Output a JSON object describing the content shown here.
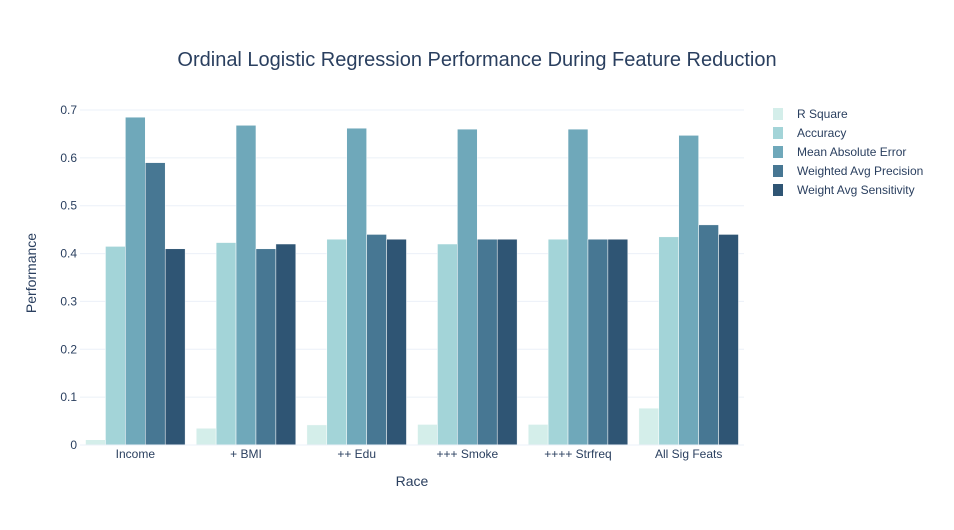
{
  "chart_data": {
    "type": "bar",
    "title": "Ordinal Logistic Regression Performance During Feature Reduction",
    "xlabel": "Race",
    "ylabel": "Performance",
    "ylim": [
      0,
      0.7
    ],
    "yticks": [
      0,
      0.1,
      0.2,
      0.3,
      0.4,
      0.5,
      0.6,
      0.7
    ],
    "ytick_labels": [
      "0",
      "0.1",
      "0.2",
      "0.3",
      "0.4",
      "0.5",
      "0.6",
      "0.7"
    ],
    "grid": true,
    "legend_position": "top-right",
    "categories": [
      "Income",
      "+ BMI",
      "++ Edu",
      "+++ Smoke",
      "++++ Strfreq",
      "All Sig Feats"
    ],
    "series": [
      {
        "name": "R Square",
        "color": "#d4eeea",
        "values": [
          0.011,
          0.035,
          0.042,
          0.043,
          0.043,
          0.077
        ]
      },
      {
        "name": "Accuracy",
        "color": "#a3d4d8",
        "values": [
          0.415,
          0.423,
          0.43,
          0.42,
          0.43,
          0.435
        ]
      },
      {
        "name": "Mean Absolute Error",
        "color": "#6fa8ba",
        "values": [
          0.685,
          0.668,
          0.662,
          0.66,
          0.66,
          0.647
        ]
      },
      {
        "name": "Weighted Avg Precision",
        "color": "#477793",
        "values": [
          0.59,
          0.41,
          0.44,
          0.43,
          0.43,
          0.46
        ]
      },
      {
        "name": "Weight Avg Sensitivity",
        "color": "#2f5574",
        "values": [
          0.41,
          0.42,
          0.43,
          0.43,
          0.43,
          0.44
        ]
      }
    ]
  }
}
